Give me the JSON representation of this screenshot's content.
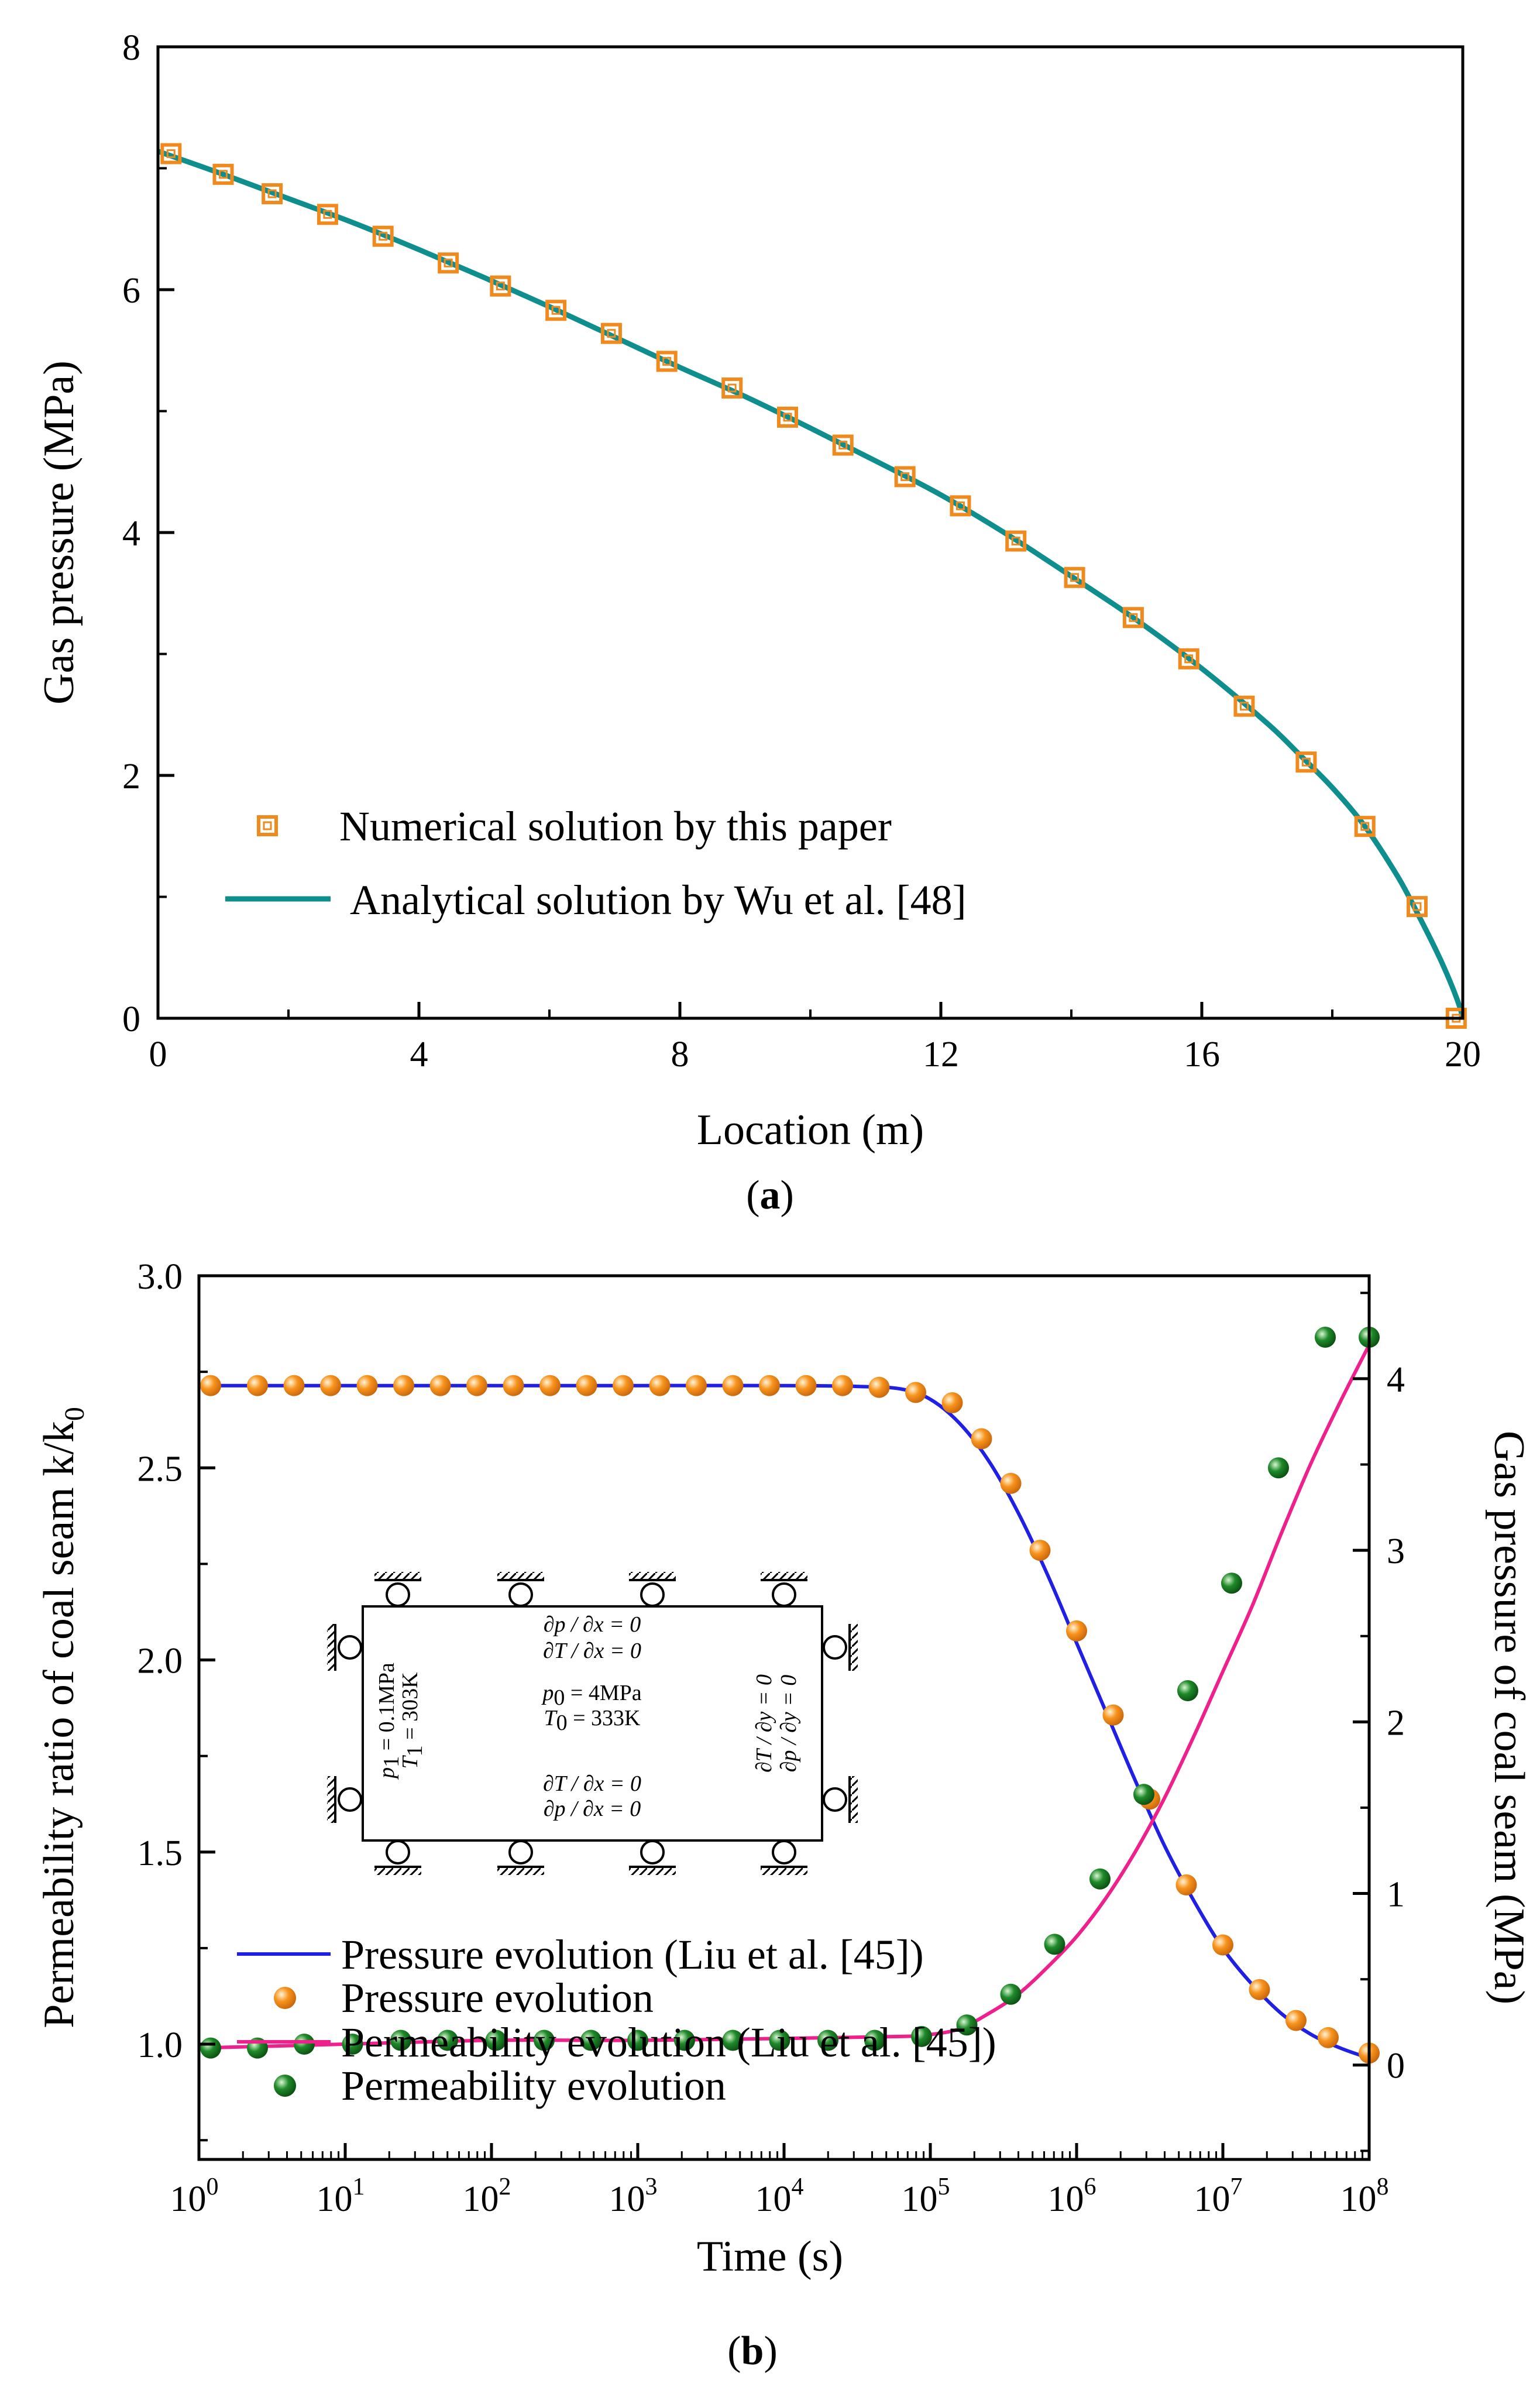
{
  "colors": {
    "analytical_line": "#0f8e8e",
    "numerical_marker": "#f08a1c",
    "pressure_line": "#1f1fe6",
    "pressure_marker": "#f7941d",
    "permeability_line": "#ef1f8c",
    "permeability_marker": "#1f8a2a"
  },
  "chart_data": [
    {
      "type": "line",
      "panel_label": "(a)",
      "xlabel": "Location (m)",
      "ylabel": "Gas pressure (MPa)",
      "xlim": [
        0,
        20
      ],
      "ylim": [
        0,
        8
      ],
      "xticks": [
        "0",
        "4",
        "8",
        "12",
        "16",
        "20"
      ],
      "yticks": [
        "0",
        "2",
        "4",
        "6",
        "8"
      ],
      "series": [
        {
          "name": "Numerical solution by this paper",
          "kind": "marker",
          "x": [
            0.2,
            1.0,
            1.75,
            2.6,
            3.45,
            4.45,
            5.25,
            6.1,
            6.95,
            7.8,
            8.8,
            9.65,
            10.5,
            11.45,
            12.3,
            13.15,
            14.05,
            14.95,
            15.8,
            16.65,
            17.6,
            18.5,
            19.3,
            19.9
          ],
          "y": [
            7.12,
            6.95,
            6.79,
            6.62,
            6.44,
            6.22,
            6.03,
            5.83,
            5.64,
            5.41,
            5.19,
            4.95,
            4.72,
            4.46,
            4.22,
            3.93,
            3.63,
            3.3,
            2.96,
            2.57,
            2.11,
            1.58,
            0.92,
            0.0
          ]
        },
        {
          "name": "Analytical solution by Wu et al. [48]",
          "kind": "line",
          "x": [
            0.0,
            1.0,
            2.0,
            3.0,
            4.0,
            5.0,
            6.0,
            7.0,
            8.0,
            9.0,
            10.0,
            11.0,
            12.0,
            13.0,
            14.0,
            15.0,
            16.0,
            17.0,
            17.5,
            18.0,
            18.5,
            19.0,
            19.3,
            19.6,
            19.8,
            19.95,
            20.0
          ],
          "y": [
            7.14,
            6.95,
            6.75,
            6.55,
            6.33,
            6.1,
            5.86,
            5.61,
            5.36,
            5.12,
            4.86,
            4.59,
            4.31,
            3.99,
            3.64,
            3.28,
            2.88,
            2.43,
            2.17,
            1.9,
            1.58,
            1.17,
            0.87,
            0.55,
            0.31,
            0.1,
            0.0
          ]
        }
      ]
    },
    {
      "type": "line",
      "panel_label": "(b)",
      "xlabel": "Time (s)",
      "ylabel_left": "Permeability ratio of coal seam k/k",
      "ylabel_left_sub": "0",
      "ylabel_right": "Gas pressure of coal seam (MPa)",
      "xscale": "log",
      "xlim_log10": [
        0,
        8
      ],
      "xtick_base": "10",
      "xtick_exponents": [
        "0",
        "1",
        "2",
        "3",
        "4",
        "5",
        "6",
        "7",
        "8"
      ],
      "ylim_left": [
        0.7,
        3.0
      ],
      "ylim_right": [
        -0.55,
        4.6
      ],
      "yticks_left": [
        "1.0",
        "1.5",
        "2.0",
        "2.5",
        "3.0"
      ],
      "yticks_right": [
        "0",
        "1",
        "2",
        "3",
        "4"
      ],
      "series": [
        {
          "name": "Pressure evolution  (Liu et al. [45])",
          "kind": "line",
          "axis": "right",
          "log10_t": [
            0.0,
            1.0,
            2.0,
            3.0,
            4.0,
            4.5,
            4.8,
            5.0,
            5.2,
            5.4,
            5.6,
            5.8,
            6.0,
            6.2,
            6.4,
            6.6,
            6.8,
            7.0,
            7.2,
            7.4,
            7.6,
            7.8,
            8.0
          ],
          "value": [
            3.96,
            3.96,
            3.96,
            3.96,
            3.96,
            3.955,
            3.94,
            3.88,
            3.74,
            3.52,
            3.22,
            2.86,
            2.46,
            2.06,
            1.66,
            1.28,
            0.96,
            0.68,
            0.47,
            0.3,
            0.18,
            0.1,
            0.04
          ]
        },
        {
          "name": "Pressure evolution",
          "kind": "marker",
          "axis": "right",
          "log10_t": [
            0.08,
            0.4,
            0.65,
            0.9,
            1.15,
            1.4,
            1.65,
            1.9,
            2.15,
            2.4,
            2.65,
            2.9,
            3.15,
            3.4,
            3.65,
            3.9,
            4.15,
            4.4,
            4.65,
            4.9,
            5.15,
            5.35,
            5.55,
            5.75,
            6.0,
            6.25,
            6.5,
            6.75,
            7.0,
            7.25,
            7.5,
            7.72,
            8.0
          ],
          "value": [
            3.96,
            3.96,
            3.96,
            3.96,
            3.96,
            3.96,
            3.96,
            3.96,
            3.96,
            3.96,
            3.96,
            3.96,
            3.96,
            3.96,
            3.96,
            3.96,
            3.96,
            3.96,
            3.95,
            3.92,
            3.86,
            3.65,
            3.39,
            3.0,
            2.53,
            2.04,
            1.55,
            1.05,
            0.7,
            0.44,
            0.26,
            0.16,
            0.07
          ]
        },
        {
          "name": "Permeability evolution  (Liu et al. [45])",
          "kind": "line",
          "axis": "left",
          "log10_t": [
            0.0,
            1.0,
            2.0,
            3.0,
            4.0,
            4.8,
            5.0,
            5.2,
            5.4,
            5.6,
            5.8,
            6.0,
            6.2,
            6.4,
            6.6,
            6.8,
            7.0,
            7.2,
            7.4,
            7.6,
            7.8,
            8.0
          ],
          "value": [
            0.99,
            1.0,
            1.01,
            1.01,
            1.015,
            1.02,
            1.025,
            1.04,
            1.08,
            1.13,
            1.2,
            1.28,
            1.38,
            1.5,
            1.64,
            1.8,
            1.97,
            2.14,
            2.33,
            2.51,
            2.67,
            2.82
          ]
        },
        {
          "name": "Permeability evolution",
          "kind": "marker",
          "axis": "left",
          "log10_t": [
            0.08,
            0.4,
            0.72,
            1.05,
            1.38,
            1.7,
            2.03,
            2.36,
            2.68,
            3.0,
            3.32,
            3.65,
            3.97,
            4.3,
            4.62,
            4.94,
            5.25,
            5.55,
            5.85,
            6.16,
            6.46,
            6.76,
            7.06,
            7.38,
            7.7,
            8.0
          ],
          "value": [
            0.99,
            0.99,
            1.0,
            1.0,
            1.01,
            1.01,
            1.01,
            1.01,
            1.01,
            1.01,
            1.01,
            1.01,
            1.01,
            1.01,
            1.01,
            1.02,
            1.05,
            1.13,
            1.26,
            1.43,
            1.65,
            1.92,
            2.2,
            2.5,
            2.84,
            2.84
          ]
        }
      ],
      "inset": {
        "top_line1": "∂p / ∂x = 0",
        "top_line2": "∂T / ∂x = 0",
        "center_line1": "p",
        "center_sub1": "0",
        "center_val1": " = 4MPa",
        "center_line2": "T",
        "center_sub2": "0",
        "center_val2": " = 333K",
        "bottom_line1": "∂T / ∂x = 0",
        "bottom_line2": "∂p / ∂x = 0",
        "left_line1": "p",
        "left_sub1": "1",
        "left_val1": " = 0.1MPa",
        "left_line2": "T",
        "left_sub2": "1",
        "left_val2": " = 303K",
        "right_line1": "∂T / ∂y = 0",
        "right_line2": "∂p / ∂y = 0"
      }
    }
  ]
}
